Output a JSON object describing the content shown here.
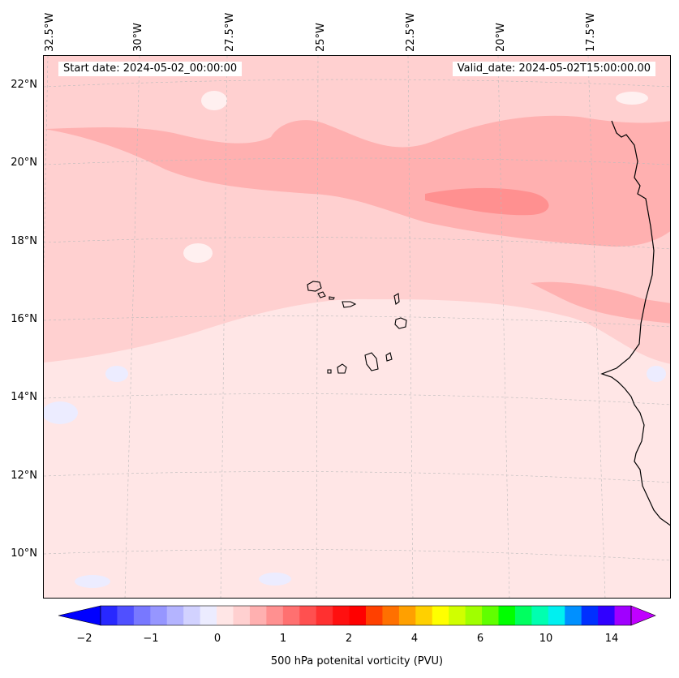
{
  "header": {
    "start_date": "Start date: 2024-05-02_00:00:00",
    "valid_date": "Valid_date: 2024-05-02T15:00:00.00"
  },
  "longitude_labels": [
    "32.5°W",
    "30°W",
    "27.5°W",
    "25°W",
    "22.5°W",
    "20°W",
    "17.5°W"
  ],
  "latitude_labels": [
    "22°N",
    "20°N",
    "18°N",
    "16°N",
    "14°N",
    "12°N",
    "10°N"
  ],
  "colorbar": {
    "label": "500 hPa potenital vorticity (PVU)",
    "tick_labels": [
      "−2",
      "−1",
      "0",
      "1",
      "2",
      "4",
      "6",
      "10",
      "14"
    ],
    "colors": [
      "#0000ff",
      "#2828ff",
      "#5050ff",
      "#7878ff",
      "#9696ff",
      "#b4b4ff",
      "#d2d2ff",
      "#ececff",
      "#ffe6e6",
      "#ffd0d0",
      "#ffb0b0",
      "#ff9090",
      "#ff7070",
      "#ff5050",
      "#ff3030",
      "#ff1010",
      "#ff0000",
      "#ff4000",
      "#ff7000",
      "#ffa000",
      "#ffd000",
      "#ffff00",
      "#d0ff00",
      "#a0ff00",
      "#60ff00",
      "#00ff00",
      "#00ff60",
      "#00ffb0",
      "#00f0f0",
      "#0090ff",
      "#0030ff",
      "#3000ff",
      "#a000ff"
    ],
    "under_color": "#0000ff",
    "over_color": "#c000ff"
  }
}
